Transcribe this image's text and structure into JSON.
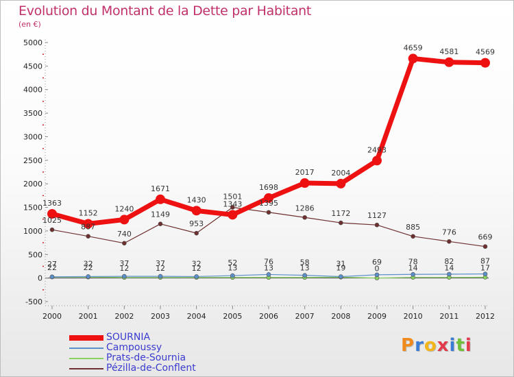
{
  "title": "Evolution du Montant de la Dette par Habitant",
  "unit_label": "(en €)",
  "logo_text": "Proxiti",
  "colors": {
    "title": "#c0306a",
    "axis_text": "#222222",
    "legend_text": "#3b3bd0",
    "tick_marks": "#cc2233"
  },
  "chart_data": {
    "type": "line",
    "title": "Evolution du Montant de la Dette par Habitant",
    "subtitle": "(en €)",
    "xlabel": "",
    "ylabel": "",
    "categories": [
      "2000",
      "2001",
      "2002",
      "2003",
      "2004",
      "2005",
      "2006",
      "2007",
      "2008",
      "2009",
      "2010",
      "2011",
      "2012"
    ],
    "ylim": [
      -500,
      5000
    ],
    "yticks": [
      -500,
      0,
      500,
      1000,
      1500,
      2000,
      2500,
      3000,
      3500,
      4000,
      4500,
      5000
    ],
    "grid": false,
    "legend_position": "bottom-left",
    "series": [
      {
        "name": "SOURNIA",
        "color": "#ee1111",
        "width": 7,
        "marker": 7,
        "values": [
          1363,
          1152,
          1240,
          1671,
          1430,
          1343,
          1698,
          2017,
          2004,
          2493,
          4659,
          4581,
          4569
        ],
        "labels": [
          "1363",
          "1152",
          "1240",
          "1671",
          "1430",
          "1343",
          "1698",
          "2017",
          "2004",
          "2493",
          "4659",
          "4581",
          "4569"
        ]
      },
      {
        "name": "Campoussy",
        "color": "#5b8fc9",
        "width": 1.2,
        "marker": 3,
        "values": [
          27,
          32,
          37,
          37,
          32,
          52,
          76,
          58,
          31,
          69,
          78,
          82,
          87
        ],
        "labels": [
          "27",
          "32",
          "37",
          "37",
          "32",
          "52",
          "76",
          "58",
          "31",
          "69",
          "78",
          "82",
          "87"
        ]
      },
      {
        "name": "Prats-de-Sournia",
        "color": "#88d060",
        "width": 1.2,
        "marker": 3,
        "values": [
          22,
          22,
          12,
          12,
          12,
          13,
          13,
          13,
          19,
          0,
          14,
          14,
          17
        ],
        "labels": [
          "22",
          "22",
          "12",
          "12",
          "12",
          "13",
          "13",
          "13",
          "19",
          "0",
          "14",
          "14",
          "17"
        ]
      },
      {
        "name": "Pézilla-de-Conflent",
        "color": "#6e2f2f",
        "width": 1.2,
        "marker": 3,
        "values": [
          1025,
          887,
          740,
          1149,
          953,
          1501,
          1395,
          1286,
          1172,
          1127,
          885,
          776,
          669
        ],
        "labels": [
          "1025",
          "887",
          "740",
          "1149",
          "953",
          "1501",
          "1395",
          "1286",
          "1172",
          "1127",
          "885",
          "776",
          "669"
        ]
      }
    ]
  }
}
